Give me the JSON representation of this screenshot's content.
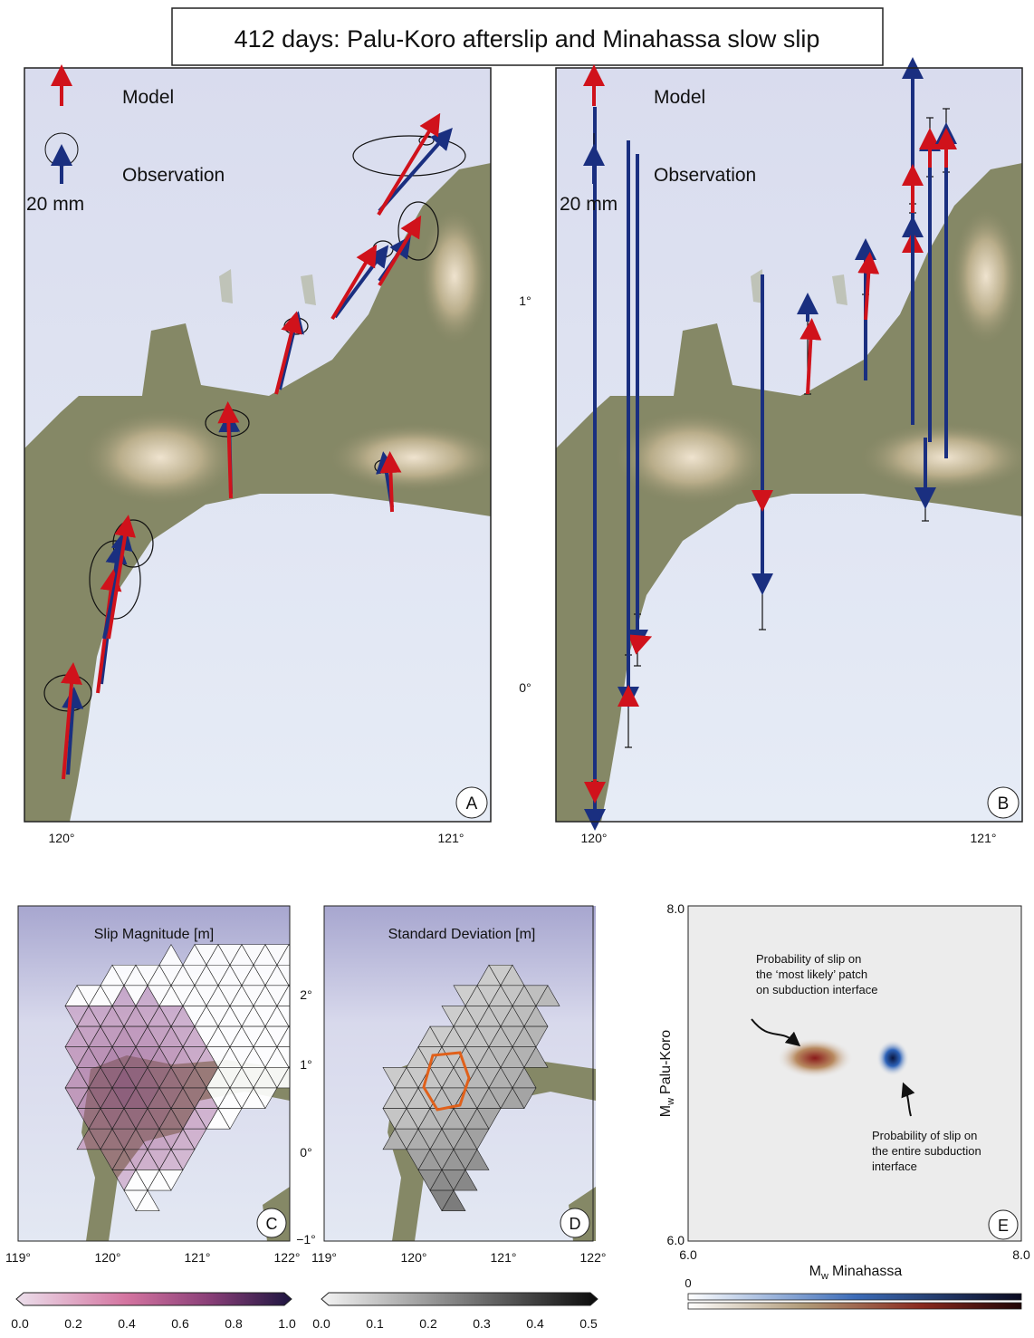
{
  "title": "412 days: Palu-Koro afterslip and Minahassa slow slip",
  "panel_a": {
    "label": "A",
    "legend_model": "Model",
    "legend_observation": "Observation",
    "legend_scale": "20 mm",
    "x_ticks": [
      "120°",
      "121°"
    ]
  },
  "panel_b": {
    "label": "B",
    "legend_model": "Model",
    "legend_observation": "Observation",
    "legend_scale": "20 mm",
    "x_ticks": [
      "120°",
      "121°"
    ]
  },
  "map_y_ticks": [
    "1°",
    "0°"
  ],
  "panel_c": {
    "label": "C",
    "title": "Slip Magnitude [m]",
    "x_ticks": [
      "119°",
      "120°",
      "121°",
      "122°"
    ],
    "colorbar_ticks": [
      "0.0",
      "0.2",
      "0.4",
      "0.6",
      "0.8",
      "1.0"
    ]
  },
  "panel_d": {
    "label": "D",
    "title": "Standard Deviation [m]",
    "x_ticks": [
      "119°",
      "120°",
      "121°",
      "122°"
    ],
    "y_ticks": [
      "2°",
      "1°",
      "0°",
      "−1°"
    ],
    "colorbar_ticks": [
      "0.0",
      "0.1",
      "0.2",
      "0.3",
      "0.4",
      "0.5"
    ]
  },
  "panel_e": {
    "label": "E",
    "x_ticks": [
      "6.0",
      "8.0"
    ],
    "y_ticks": [
      "8.0",
      "6.0"
    ],
    "x_label": {
      "symbol": "M",
      "subscript": "w",
      "text": "Minahassa"
    },
    "y_label": {
      "symbol": "M",
      "subscript": "w",
      "text": "Palu-Koro"
    },
    "annotation_patch": [
      "Probability of slip on",
      "the ‘most likely’ patch",
      "on subduction interface"
    ],
    "annotation_interface": [
      "Probability of slip on",
      "the entire subduction",
      "interface"
    ],
    "colorbar_tick": "0"
  }
}
